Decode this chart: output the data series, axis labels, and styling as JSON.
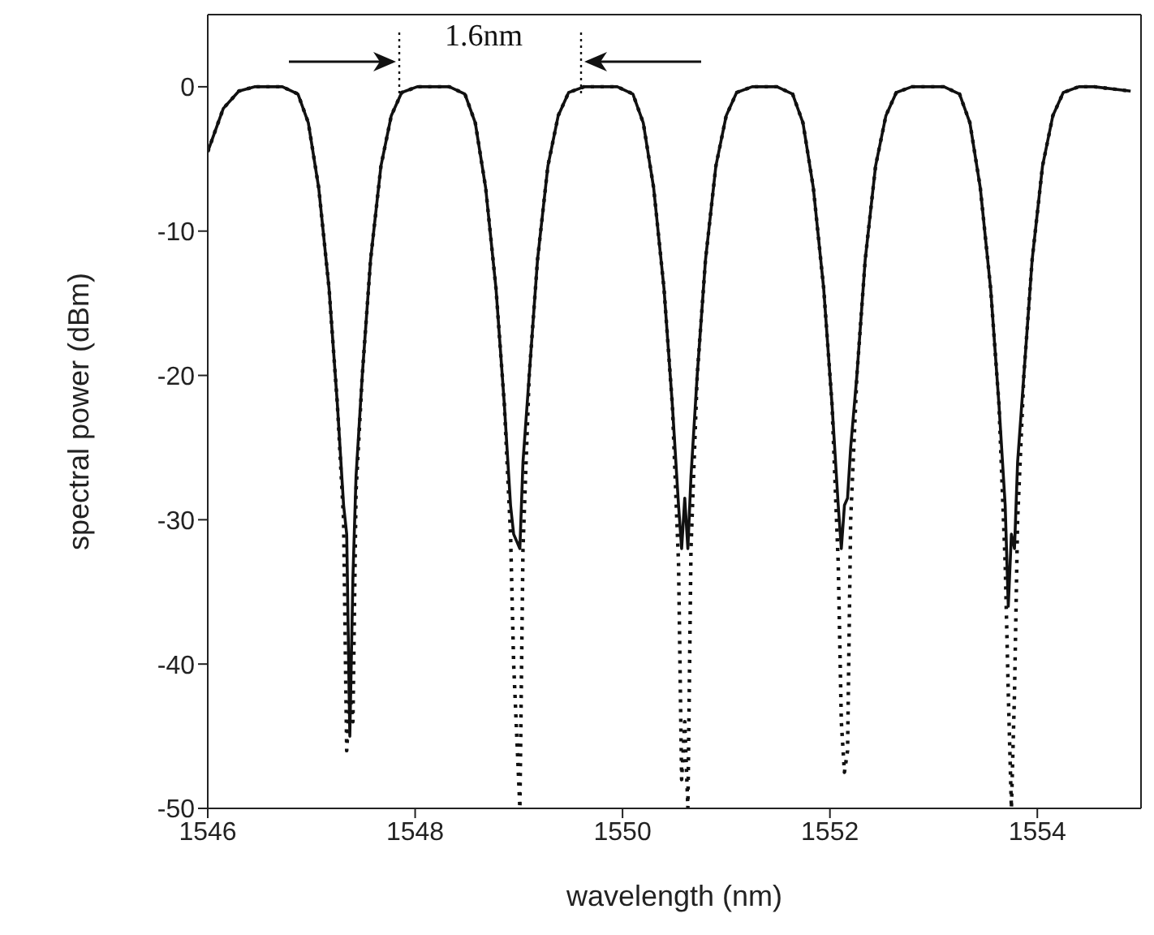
{
  "chart_data": {
    "type": "line",
    "xlabel": "wavelength (nm)",
    "ylabel": "spectral power (dBm)",
    "xlim": [
      1546,
      1555
    ],
    "xticks": [
      1546,
      1548,
      1550,
      1552,
      1554
    ],
    "ylim": [
      -50,
      5
    ],
    "yticks": [
      0,
      -10,
      -20,
      -30,
      -40,
      -50
    ],
    "marker": "none",
    "annotations": [
      "1.6nm"
    ],
    "x": [
      1546,
      1546.15,
      1546.3,
      1546.45,
      1546.72,
      1546.87,
      1546.97,
      1547.07,
      1547.17,
      1547.25,
      1547.31,
      1547.34,
      1547.37,
      1547.4,
      1547.43,
      1547.49,
      1547.57,
      1547.67,
      1547.77,
      1547.87,
      1548.02,
      1548.17,
      1548.33,
      1548.48,
      1548.58,
      1548.68,
      1548.78,
      1548.86,
      1548.92,
      1548.95,
      1548.98,
      1549.01,
      1549.04,
      1549.1,
      1549.18,
      1549.28,
      1549.38,
      1549.48,
      1549.63,
      1549.79,
      1549.95,
      1550.1,
      1550.2,
      1550.3,
      1550.4,
      1550.48,
      1550.54,
      1550.57,
      1550.6,
      1550.63,
      1550.66,
      1550.72,
      1550.8,
      1550.9,
      1551,
      1551.1,
      1551.25,
      1551.37,
      1551.49,
      1551.64,
      1551.74,
      1551.84,
      1551.94,
      1552.02,
      1552.08,
      1552.11,
      1552.14,
      1552.17,
      1552.2,
      1552.26,
      1552.34,
      1552.44,
      1552.54,
      1552.64,
      1552.79,
      1552.95,
      1553.1,
      1553.25,
      1553.35,
      1553.45,
      1553.55,
      1553.63,
      1553.69,
      1553.72,
      1553.75,
      1553.78,
      1553.81,
      1553.87,
      1553.95,
      1554.05,
      1554.15,
      1554.25,
      1554.4,
      1554.55,
      1554.9
    ],
    "series": [
      {
        "color": "#111111",
        "line_style": "solid",
        "values": [
          -4.5,
          -1.5,
          -0.3,
          0,
          0,
          -0.5,
          -2.5,
          -7,
          -14,
          -22,
          -29,
          -31,
          -45,
          -34,
          -27,
          -20,
          -12,
          -5.5,
          -2,
          -0.4,
          0,
          0,
          0,
          -0.5,
          -2.5,
          -7,
          -14,
          -22,
          -29,
          -31,
          -31.5,
          -32,
          -26,
          -20,
          -12,
          -5.5,
          -2,
          -0.4,
          0,
          0,
          0,
          -0.5,
          -2.5,
          -7,
          -14,
          -22,
          -29,
          -32,
          -28.5,
          -32,
          -27,
          -20,
          -12,
          -5.5,
          -2,
          -0.4,
          0,
          0,
          0,
          -0.5,
          -2.5,
          -7,
          -14,
          -22,
          -29,
          -32,
          -29,
          -28.5,
          -25,
          -20,
          -12,
          -5.5,
          -2,
          -0.4,
          0,
          0,
          0,
          -0.5,
          -2.5,
          -7,
          -14,
          -22,
          -29,
          -36,
          -31,
          -32,
          -26,
          -20,
          -12,
          -5.5,
          -2,
          -0.4,
          0,
          0,
          -0.3
        ]
      },
      {
        "color": "#111111",
        "line_style": "dotted",
        "values": [
          -4.5,
          -1.5,
          -0.3,
          0,
          0,
          -0.5,
          -2.5,
          -7,
          -14,
          -22,
          -30,
          -46,
          -42,
          -44,
          -28,
          -20,
          -12,
          -5.5,
          -2,
          -0.4,
          0,
          0,
          0,
          -0.5,
          -2.5,
          -7,
          -14,
          -22,
          -31,
          -40,
          -45,
          -50,
          -32,
          -20,
          -12,
          -5.5,
          -2,
          -0.4,
          0,
          0,
          0,
          -0.5,
          -2.5,
          -7,
          -14,
          -22,
          -33,
          -48,
          -44,
          -50,
          -32,
          -20,
          -12,
          -5.5,
          -2,
          -0.4,
          0,
          0,
          0,
          -0.5,
          -2.5,
          -7,
          -14,
          -22,
          -33,
          -44,
          -47.5,
          -46,
          -30,
          -20,
          -12,
          -5.5,
          -2,
          -0.4,
          0,
          0,
          0,
          -0.5,
          -2.5,
          -7,
          -14,
          -22,
          -33,
          -42,
          -50,
          -42,
          -30,
          -20,
          -12,
          -5.5,
          -2,
          -0.4,
          0,
          0,
          -0.3
        ]
      }
    ]
  }
}
